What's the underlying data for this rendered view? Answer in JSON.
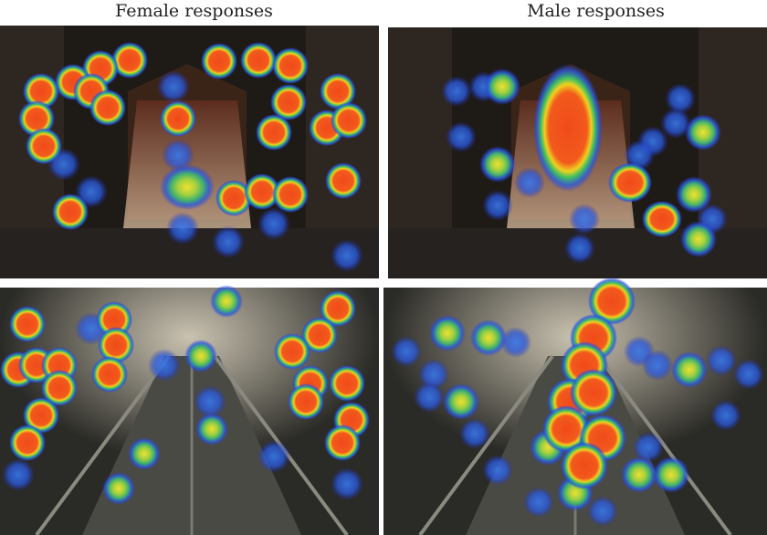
{
  "titles": {
    "female": "Female responses",
    "male": "Male responses"
  },
  "colors": {
    "heat_hot": "#f04a1a",
    "heat_warm": "#f0d020",
    "heat_mid": "#40c060",
    "heat_cool": "#2a5ae0"
  }
}
